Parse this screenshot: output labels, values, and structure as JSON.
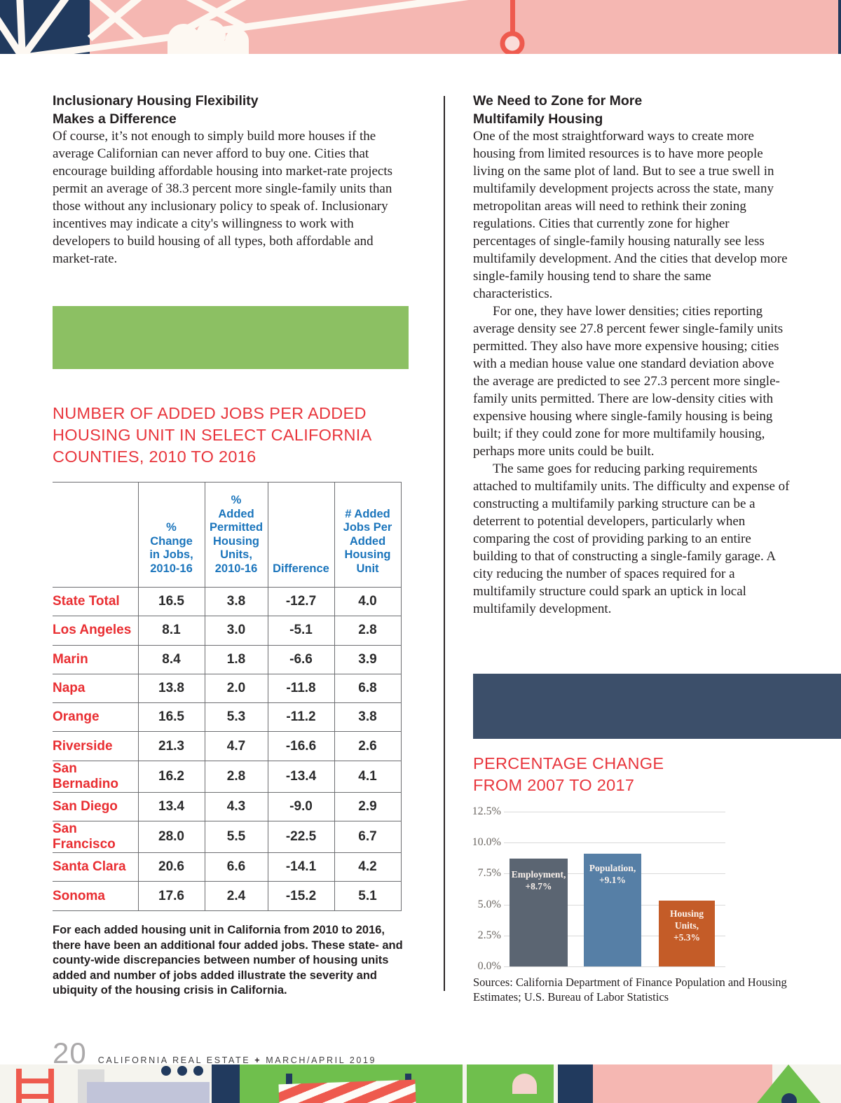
{
  "left_column": {
    "section_heading": "Inclusionary Housing Flexibility\nMakes a Difference",
    "body": "Of course, it’s not enough to simply build more houses if the average Californian can never afford to buy one. Cities that encourage building affordable housing into market-rate projects permit an average of 38.3 percent more single-family units than those without any inclusionary policy to speak of. Inclusionary incentives may indicate a city's willingness to work with developers to build housing of all types, both affordable and market-rate.",
    "table_title": "NUMBER OF ADDED JOBS PER ADDED\nHOUSING UNIT IN SELECT CALIFORNIA\nCOUNTIES, 2010 TO 2016",
    "table": {
      "columns": [
        "",
        "%\nChange\nin Jobs,\n2010-16",
        "%\nAdded\nPermitted\nHousing\nUnits,\n2010-16",
        "Difference",
        "# Added\nJobs Per\nAdded\nHousing\nUnit"
      ],
      "rows": [
        {
          "label": "State Total",
          "values": [
            "16.5",
            "3.8",
            "-12.7",
            "4.0"
          ]
        },
        {
          "label": "Los Angeles",
          "values": [
            "8.1",
            "3.0",
            "-5.1",
            "2.8"
          ]
        },
        {
          "label": "Marin",
          "values": [
            "8.4",
            "1.8",
            "-6.6",
            "3.9"
          ]
        },
        {
          "label": "Napa",
          "values": [
            "13.8",
            "2.0",
            "-11.8",
            "6.8"
          ]
        },
        {
          "label": "Orange",
          "values": [
            "16.5",
            "5.3",
            "-11.2",
            "3.8"
          ]
        },
        {
          "label": "Riverside",
          "values": [
            "21.3",
            "4.7",
            "-16.6",
            "2.6"
          ]
        },
        {
          "label": "San Bernadino",
          "values": [
            "16.2",
            "2.8",
            "-13.4",
            "4.1"
          ]
        },
        {
          "label": "San Diego",
          "values": [
            "13.4",
            "4.3",
            "-9.0",
            "2.9"
          ]
        },
        {
          "label": "San Francisco",
          "values": [
            "28.0",
            "5.5",
            "-22.5",
            "6.7"
          ]
        },
        {
          "label": "Santa Clara",
          "values": [
            "20.6",
            "6.6",
            "-14.1",
            "4.2"
          ]
        },
        {
          "label": "Sonoma",
          "values": [
            "17.6",
            "2.4",
            "-15.2",
            "5.1"
          ]
        }
      ]
    },
    "caption": "For each added housing unit in California from 2010 to 2016, there have been an additional four added jobs. These state- and county-wide discrepancies between number of housing units added and number of jobs added illustrate the severity and ubiquity of the housing crisis in California."
  },
  "right_column": {
    "section_heading": "We Need to Zone for More\nMultifamily Housing",
    "paragraphs": [
      "One of the most straightforward ways to create more housing from limited resources is to have more people living on the same plot of land. But to see a true swell in multifamily development projects across the state, many metropolitan areas will need to rethink their zoning regulations. Cities that currently zone for higher percentages of single-family housing naturally see less multifamily development. And the cities that develop more single-family housing tend to share the same characteristics.",
      "For one, they have lower densities; cities reporting average density see 27.8 percent fewer single-family units permitted. They also have more expensive housing; cities with a median house value one standard deviation above the average are predicted to see 27.3 percent more single-family units permitted. There are low-density cities with expensive housing where single-family housing is being built; if they could zone for more multifamily housing, perhaps more units could be built.",
      "The same goes for reducing parking requirements attached to multifamily units. The difficulty and expense of constructing a multifamily parking structure can be a deterrent to potential developers, particularly when comparing the cost of providing parking to an entire building to that of constructing a single-family garage. A city reducing the number of spaces required for a multifamily structure could spark an uptick in local multifamily development."
    ],
    "chart_title": "PERCENTAGE CHANGE\nFROM 2007 TO 2017",
    "sources": "Sources: California Department of Finance Population and Housing Estimates; U.S. Bureau of Labor Statistics"
  },
  "chart_data": {
    "type": "bar",
    "title": "PERCENTAGE CHANGE FROM 2007 TO 2017",
    "categories": [
      "Employment",
      "Population",
      "Housing Units"
    ],
    "values": [
      8.7,
      9.1,
      5.3
    ],
    "bar_labels": [
      "Employment,\n+8.7%",
      "Population,\n+9.1%",
      "Housing\nUnits,\n+5.3%"
    ],
    "bar_colors": [
      "#5B6572",
      "#567FA6",
      "#C45C28"
    ],
    "yticks": [
      "0.0%",
      "2.5%",
      "5.0%",
      "7.5%",
      "10.0%",
      "12.5%"
    ],
    "ylim": [
      0,
      12.5
    ],
    "grid": true,
    "legend": "labels inside bars",
    "sources": "Sources: California Department of Finance Population and Housing Estimates; U.S. Bureau of Labor Statistics"
  },
  "footer": {
    "page_number": "20",
    "magazine": "CALIFORNIA REAL ESTATE",
    "separator": "+",
    "issue": "MARCH/APRIL 2019"
  },
  "colors": {
    "accent_red": "#E8353C",
    "table_label_red": "#E92E32",
    "table_header_blue": "#1B75BC",
    "green_box": "#8CC063",
    "navy_box": "#3C4F6A",
    "banner_pink": "#F5B7B2",
    "banner_navy": "#213A5E",
    "banner_salmon": "#EE5A4E",
    "band_green": "#6FBF4D",
    "band_lavender": "#C1C4D9"
  }
}
